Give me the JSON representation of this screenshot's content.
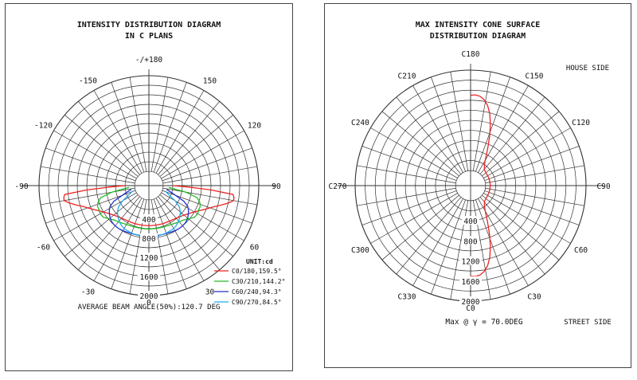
{
  "chart_data": [
    {
      "type": "polar-line",
      "title": "INTENSITY DISTRIBUTION DIAGRAM",
      "subtitle": "IN C PLANS",
      "angle_labels": [
        {
          "angle": 180,
          "text": "-/+180"
        },
        {
          "angle": -150,
          "text": "-150"
        },
        {
          "angle": 150,
          "text": "150"
        },
        {
          "angle": -120,
          "text": "-120"
        },
        {
          "angle": 120,
          "text": "120"
        },
        {
          "angle": -90,
          "text": "-90"
        },
        {
          "angle": 90,
          "text": "90"
        },
        {
          "angle": -60,
          "text": "-60"
        },
        {
          "angle": 60,
          "text": "60"
        },
        {
          "angle": -30,
          "text": "-30"
        },
        {
          "angle": 30,
          "text": "30"
        },
        {
          "angle": 0,
          "text": "0"
        }
      ],
      "radial_ticks": [
        "400",
        "800",
        "1200",
        "1600",
        "2000"
      ],
      "radial_max": 2000,
      "legend_title": "UNIT:cd",
      "legend_position": "bottom-right",
      "series": [
        {
          "name": "C0/180,159.5°",
          "color": "#ee2222",
          "points": [
            [
              -90,
              200
            ],
            [
              -88,
              520
            ],
            [
              -86,
              1000
            ],
            [
              -84,
              1470
            ],
            [
              -82,
              1500
            ],
            [
              -80,
              1500
            ],
            [
              -78,
              1420
            ],
            [
              -75,
              1270
            ],
            [
              -72,
              1130
            ],
            [
              -68,
              1000
            ],
            [
              -64,
              890
            ],
            [
              -60,
              800
            ],
            [
              -55,
              720
            ],
            [
              -50,
              660
            ],
            [
              -45,
              620
            ],
            [
              -40,
              590
            ],
            [
              -35,
              570
            ],
            [
              -30,
              560
            ],
            [
              -20,
              550
            ],
            [
              -10,
              540
            ],
            [
              0,
              540
            ],
            [
              10,
              540
            ],
            [
              20,
              550
            ],
            [
              30,
              560
            ],
            [
              35,
              570
            ],
            [
              40,
              590
            ],
            [
              45,
              620
            ],
            [
              50,
              660
            ],
            [
              55,
              720
            ],
            [
              60,
              800
            ],
            [
              64,
              890
            ],
            [
              68,
              1000
            ],
            [
              72,
              1130
            ],
            [
              75,
              1270
            ],
            [
              78,
              1420
            ],
            [
              80,
              1500
            ],
            [
              82,
              1500
            ],
            [
              84,
              1470
            ],
            [
              86,
              1000
            ],
            [
              88,
              520
            ],
            [
              90,
              200
            ]
          ]
        },
        {
          "name": "C30/210,144.2°",
          "color": "#22bb22",
          "points": [
            [
              -85,
              120
            ],
            [
              -80,
              480
            ],
            [
              -76,
              740
            ],
            [
              -72,
              820
            ],
            [
              -68,
              860
            ],
            [
              -64,
              860
            ],
            [
              -60,
              880
            ],
            [
              -55,
              860
            ],
            [
              -50,
              780
            ],
            [
              -45,
              720
            ],
            [
              -40,
              690
            ],
            [
              -30,
              640
            ],
            [
              -20,
              620
            ],
            [
              -10,
              610
            ],
            [
              0,
              610
            ],
            [
              10,
              610
            ],
            [
              20,
              620
            ],
            [
              30,
              640
            ],
            [
              40,
              690
            ],
            [
              45,
              720
            ],
            [
              50,
              780
            ],
            [
              55,
              860
            ],
            [
              60,
              880
            ],
            [
              64,
              860
            ],
            [
              68,
              860
            ],
            [
              72,
              820
            ],
            [
              76,
              740
            ],
            [
              80,
              480
            ],
            [
              85,
              120
            ]
          ]
        },
        {
          "name": "C60/240,94.3°",
          "color": "#2233cc",
          "points": [
            [
              -78,
              80
            ],
            [
              -72,
              220
            ],
            [
              -66,
              500
            ],
            [
              -62,
              620
            ],
            [
              -58,
              680
            ],
            [
              -54,
              720
            ],
            [
              -50,
              760
            ],
            [
              -45,
              790
            ],
            [
              -40,
              800
            ],
            [
              -35,
              800
            ],
            [
              -30,
              790
            ],
            [
              -20,
              770
            ],
            [
              -10,
              760
            ],
            [
              0,
              760
            ],
            [
              10,
              760
            ],
            [
              20,
              770
            ],
            [
              30,
              790
            ],
            [
              35,
              800
            ],
            [
              40,
              800
            ],
            [
              45,
              790
            ],
            [
              50,
              760
            ],
            [
              54,
              720
            ],
            [
              58,
              680
            ],
            [
              62,
              620
            ],
            [
              66,
              500
            ],
            [
              72,
              220
            ],
            [
              78,
              80
            ]
          ]
        },
        {
          "name": "C90/270,84.5°",
          "color": "#22aaee",
          "points": [
            [
              -72,
              60
            ],
            [
              -65,
              160
            ],
            [
              -60,
              340
            ],
            [
              -55,
              480
            ],
            [
              -50,
              560
            ],
            [
              -45,
              620
            ],
            [
              -40,
              670
            ],
            [
              -35,
              710
            ],
            [
              -30,
              740
            ],
            [
              -20,
              760
            ],
            [
              -10,
              770
            ],
            [
              0,
              770
            ],
            [
              10,
              770
            ],
            [
              20,
              760
            ],
            [
              30,
              740
            ],
            [
              35,
              710
            ],
            [
              40,
              670
            ],
            [
              45,
              620
            ],
            [
              50,
              560
            ],
            [
              55,
              480
            ],
            [
              60,
              340
            ],
            [
              65,
              160
            ],
            [
              72,
              60
            ]
          ]
        }
      ],
      "footer": "AVERAGE BEAM ANGLE(50%):120.7 DEG"
    },
    {
      "type": "polar-line",
      "title": "MAX INTENSITY CONE SURFACE",
      "subtitle": "DISTRIBUTION DIAGRAM",
      "angle_labels": [
        {
          "angle": 180,
          "text": "C180"
        },
        {
          "angle": -150,
          "text": "C210"
        },
        {
          "angle": 150,
          "text": "C150"
        },
        {
          "angle": -120,
          "text": "C240"
        },
        {
          "angle": 120,
          "text": "C120"
        },
        {
          "angle": -90,
          "text": "C270"
        },
        {
          "angle": 90,
          "text": "C90"
        },
        {
          "angle": -60,
          "text": "C300"
        },
        {
          "angle": 60,
          "text": "C60"
        },
        {
          "angle": -30,
          "text": "C330"
        },
        {
          "angle": 30,
          "text": "C30"
        },
        {
          "angle": 0,
          "text": "C0"
        }
      ],
      "radial_ticks": [
        "400",
        "800",
        "1200",
        "1600",
        "2000"
      ],
      "radial_max": 2000,
      "corner_top_right": "HOUSE SIDE",
      "corner_bottom_right": "STREET SIDE",
      "footer": "Max @ γ = 70.0DEG",
      "series": [
        {
          "name": "",
          "color": "#ee2222",
          "points": [
            [
              0,
              1500
            ],
            [
              3,
              1510
            ],
            [
              6,
              1490
            ],
            [
              9,
              1430
            ],
            [
              12,
              1330
            ],
            [
              15,
              1180
            ],
            [
              18,
              980
            ],
            [
              21,
              760
            ],
            [
              24,
              560
            ],
            [
              27,
              400
            ],
            [
              30,
              280
            ],
            [
              35,
              180
            ],
            [
              40,
              130
            ],
            [
              45,
              110
            ],
            [
              50,
              100
            ],
            [
              60,
              95
            ],
            [
              70,
              92
            ],
            [
              80,
              92
            ],
            [
              90,
              92
            ],
            [
              100,
              92
            ],
            [
              110,
              92
            ],
            [
              120,
              95
            ],
            [
              130,
              100
            ],
            [
              135,
              110
            ],
            [
              140,
              130
            ],
            [
              145,
              180
            ],
            [
              150,
              280
            ],
            [
              153,
              400
            ],
            [
              156,
              560
            ],
            [
              159,
              760
            ],
            [
              162,
              980
            ],
            [
              165,
              1180
            ],
            [
              168,
              1330
            ],
            [
              171,
              1430
            ],
            [
              174,
              1490
            ],
            [
              177,
              1510
            ],
            [
              180,
              1500
            ]
          ]
        }
      ]
    }
  ]
}
